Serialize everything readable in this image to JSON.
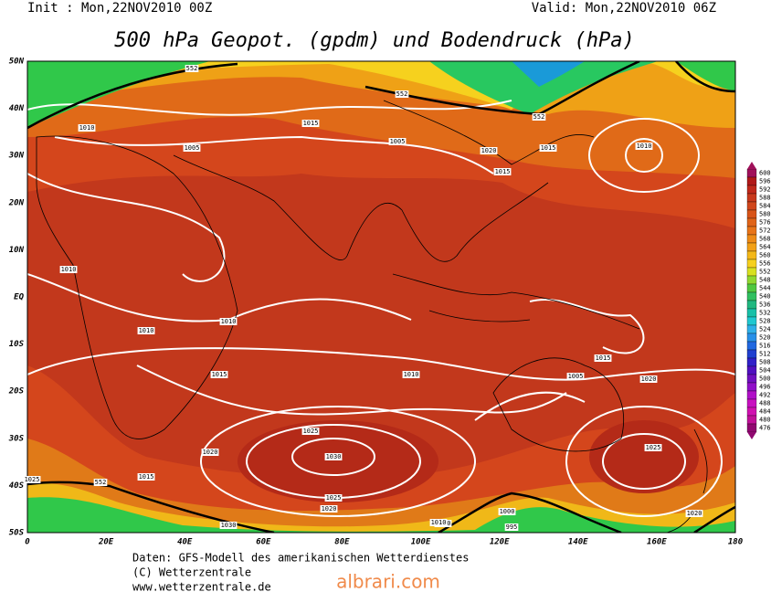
{
  "header": {
    "init": "Init : Mon,22NOV2010 00Z",
    "valid": "Valid: Mon,22NOV2010 06Z",
    "title": "500 hPa Geopot. (gpdm) und Bodendruck (hPa)"
  },
  "map": {
    "lat_labels": [
      "50N",
      "40N",
      "30N",
      "20N",
      "10N",
      "EQ",
      "10S",
      "20S",
      "30S",
      "40S",
      "50S"
    ],
    "lon_labels": [
      "0",
      "20E",
      "40E",
      "60E",
      "80E",
      "100E",
      "120E",
      "140E",
      "160E",
      "180"
    ],
    "contour_labels": [
      1030,
      1025,
      1020,
      1015,
      1010,
      1005,
      1015,
      1010,
      1010,
      1010,
      1010,
      1015,
      1020,
      1025,
      1030,
      1025,
      1020,
      1015,
      1010,
      1005,
      1015,
      1020,
      1025,
      1010,
      1005,
      1015,
      1010,
      1020,
      1000,
      995,
      552,
      552,
      552,
      552
    ]
  },
  "colorbar": {
    "levels": [
      600,
      596,
      592,
      588,
      584,
      580,
      576,
      572,
      568,
      564,
      560,
      556,
      552,
      548,
      544,
      540,
      536,
      532,
      528,
      524,
      520,
      516,
      512,
      508,
      504,
      500,
      496,
      492,
      488,
      484,
      480,
      476
    ]
  },
  "footer": {
    "source": "Daten: GFS-Modell des amerikanischen Wetterdienstes",
    "copyright": "(C) Wetterzentrale",
    "url": "www.wetterzentrale.de",
    "watermark": "albrari.com"
  }
}
